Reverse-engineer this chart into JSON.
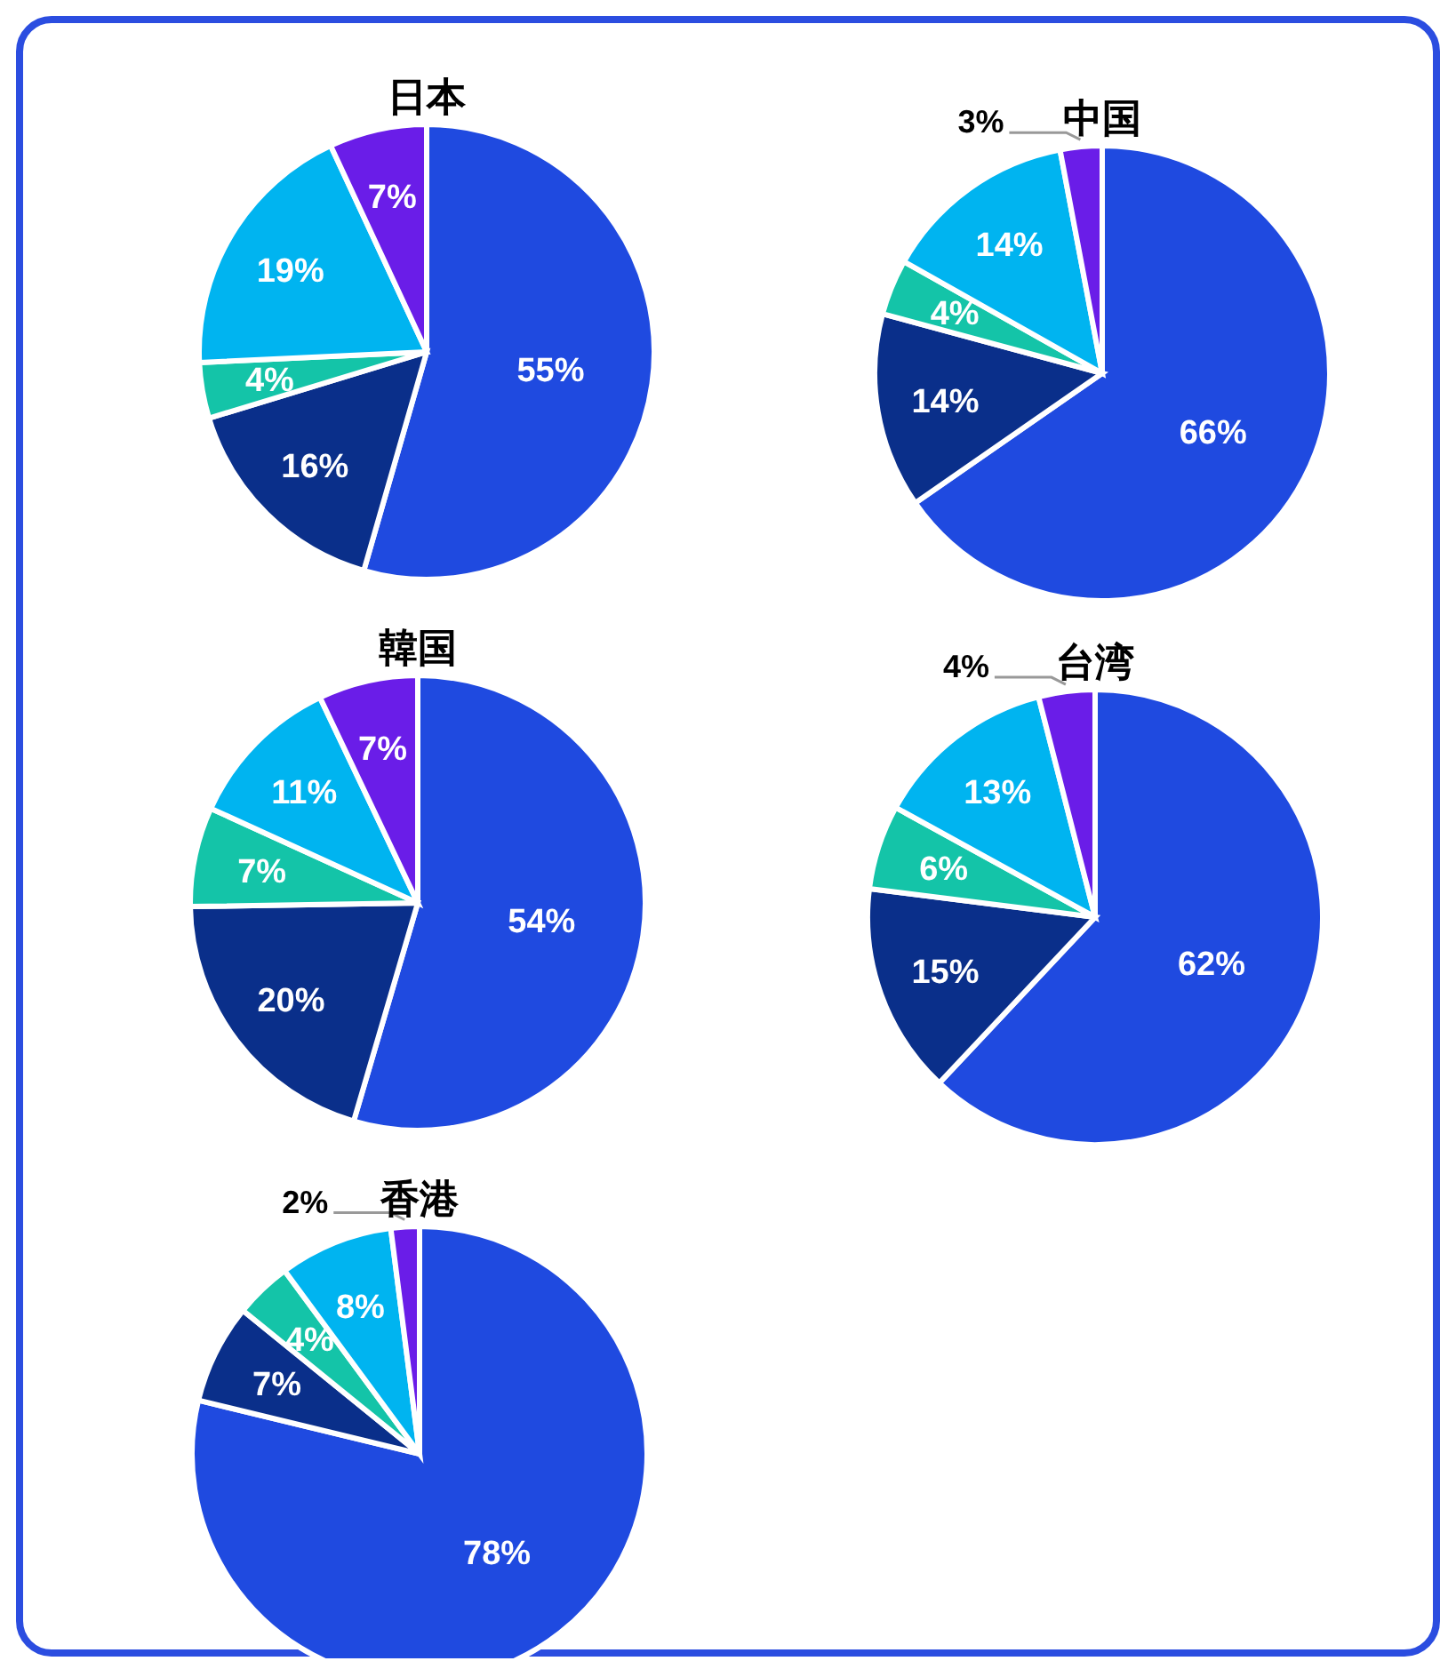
{
  "chart_data": [
    {
      "type": "pie",
      "title": "日本",
      "categories": [
        null,
        null,
        null,
        null,
        null
      ],
      "values": [
        55,
        16,
        4,
        19,
        7
      ],
      "colors": [
        "#1f4ae0",
        "#0a2f8a",
        "#14c4a8",
        "#00b4f0",
        "#6a1de8"
      ],
      "value_labels": [
        "55%",
        "16%",
        "4%",
        "19%",
        "7%"
      ]
    },
    {
      "type": "pie",
      "title": "中国",
      "categories": [
        null,
        null,
        null,
        null,
        null
      ],
      "values": [
        66,
        14,
        4,
        14,
        3
      ],
      "colors": [
        "#1f4ae0",
        "#0a2f8a",
        "#14c4a8",
        "#00b4f0",
        "#6a1de8"
      ],
      "value_labels": [
        "66%",
        "14%",
        "4%",
        "14%",
        "3%"
      ]
    },
    {
      "type": "pie",
      "title": "韓国",
      "categories": [
        null,
        null,
        null,
        null,
        null
      ],
      "values": [
        54,
        20,
        7,
        11,
        7
      ],
      "colors": [
        "#1f4ae0",
        "#0a2f8a",
        "#14c4a8",
        "#00b4f0",
        "#6a1de8"
      ],
      "value_labels": [
        "54%",
        "20%",
        "7%",
        "11%",
        "7%"
      ]
    },
    {
      "type": "pie",
      "title": "台湾",
      "categories": [
        null,
        null,
        null,
        null,
        null
      ],
      "values": [
        62,
        15,
        6,
        13,
        4
      ],
      "colors": [
        "#1f4ae0",
        "#0a2f8a",
        "#14c4a8",
        "#00b4f0",
        "#6a1de8"
      ],
      "value_labels": [
        "62%",
        "15%",
        "6%",
        "13%",
        "4%"
      ]
    },
    {
      "type": "pie",
      "title": "香港",
      "categories": [
        null,
        null,
        null,
        null,
        null
      ],
      "values": [
        78,
        7,
        4,
        8,
        2
      ],
      "colors": [
        "#1f4ae0",
        "#0a2f8a",
        "#14c4a8",
        "#00b4f0",
        "#6a1de8"
      ],
      "value_labels": [
        "78%",
        "7%",
        "4%",
        "8%",
        "2%"
      ]
    }
  ]
}
